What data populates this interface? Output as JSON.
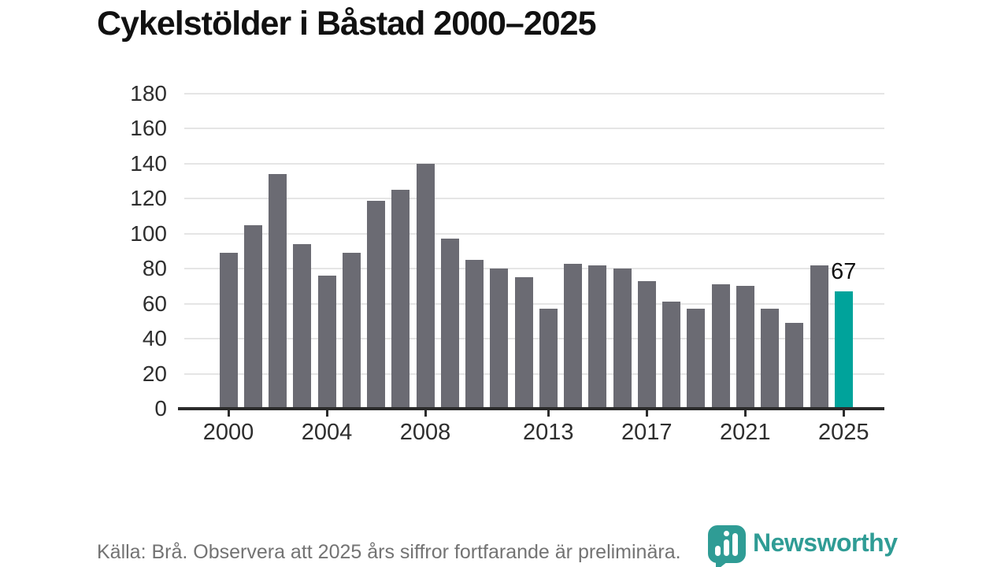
{
  "title": "Cykelstölder i Båstad 2000–2025",
  "footer": {
    "source_text": "Källa: Brå. Observera att 2025 års siffror fortfarande är preliminära."
  },
  "logo": {
    "text": "Newsworthy",
    "icon": "newsworthy-speech-bubble-bar-chart-icon",
    "color": "#2f9c95"
  },
  "colors": {
    "bar": "#6b6b73",
    "highlight_bar": "#00a39b",
    "gridline": "#e5e5e5",
    "axis": "#2b2b2b",
    "tick_label": "#2e2e2e",
    "title": "#111111",
    "footer_text": "#737373",
    "value_label": "#111111"
  },
  "chart_data": {
    "type": "bar",
    "title": "Cykelstölder i Båstad 2000–2025",
    "xlabel": "",
    "ylabel": "",
    "x": [
      2000,
      2001,
      2002,
      2003,
      2004,
      2005,
      2006,
      2007,
      2008,
      2009,
      2010,
      2011,
      2012,
      2013,
      2014,
      2015,
      2016,
      2017,
      2018,
      2019,
      2020,
      2021,
      2022,
      2023,
      2024,
      2025
    ],
    "values": [
      89,
      105,
      134,
      94,
      76,
      89,
      119,
      125,
      140,
      97,
      85,
      80,
      75,
      57,
      83,
      82,
      80,
      73,
      61,
      57,
      71,
      70,
      57,
      49,
      82,
      67
    ],
    "highlight_x": 2025,
    "highlight_value_label": "67",
    "ylim": [
      0,
      180
    ],
    "y_ticks": [
      0,
      20,
      40,
      60,
      80,
      100,
      120,
      140,
      160,
      180
    ],
    "x_ticks": [
      2000,
      2004,
      2008,
      2013,
      2017,
      2021,
      2025
    ],
    "grid": true,
    "legend": "none"
  }
}
